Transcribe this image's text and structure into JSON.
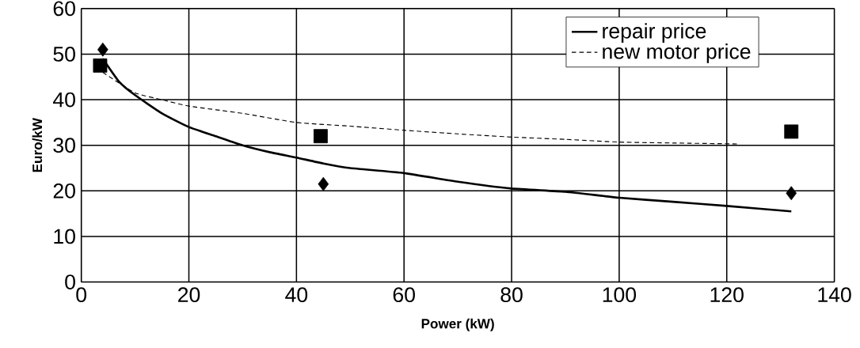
{
  "chart_data": {
    "type": "line",
    "xlabel": "Power (kW)",
    "ylabel": "Euro/kW",
    "xlim": [
      0,
      140
    ],
    "ylim": [
      0,
      60
    ],
    "xticks": [
      0,
      20,
      40,
      60,
      80,
      100,
      120,
      140
    ],
    "yticks": [
      0,
      10,
      20,
      30,
      40,
      50,
      60
    ],
    "grid": true,
    "legend": "top right",
    "series": [
      {
        "name": "repair price",
        "color": "#000000",
        "line_style": "solid",
        "marker": "none",
        "x": [
          4,
          7,
          10,
          15,
          20,
          25,
          30,
          35,
          40,
          45,
          50,
          60,
          70,
          80,
          90,
          100,
          110,
          120,
          132
        ],
        "values": [
          49,
          44,
          41,
          37,
          34,
          32,
          30,
          28.5,
          27.3,
          26,
          25,
          23.9,
          22,
          20.5,
          19.8,
          18.5,
          17.6,
          16.7,
          15.5
        ]
      },
      {
        "name": "new motor price",
        "color": "#000000",
        "line_style": "dashed",
        "marker": "none",
        "x": [
          4,
          10,
          15,
          20,
          30,
          40,
          50,
          60,
          70,
          80,
          90,
          100,
          110,
          122
        ],
        "values": [
          46,
          41.5,
          40,
          38.6,
          37,
          35,
          34.2,
          33.3,
          32.5,
          31.8,
          31.3,
          30.7,
          30.5,
          30.3
        ]
      },
      {
        "type": "scatter",
        "color": "#000000",
        "marker": "diamond",
        "x": [
          4,
          45,
          132
        ],
        "values": [
          51,
          21.5,
          19.5
        ]
      },
      {
        "type": "scatter",
        "color": "#000000",
        "marker": "square",
        "x": [
          3.5,
          44.5,
          132
        ],
        "values": [
          47.5,
          32,
          33
        ]
      }
    ]
  }
}
